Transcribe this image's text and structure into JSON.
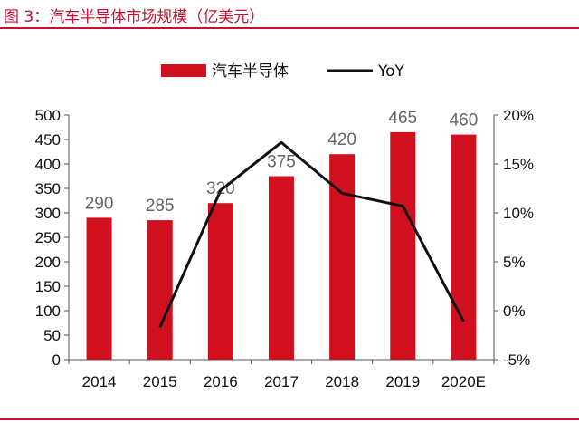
{
  "figure_title": "图 3：汽车半导体市场规模（亿美元）",
  "chart_data": {
    "type": "bar",
    "categories": [
      "2014",
      "2015",
      "2016",
      "2017",
      "2018",
      "2019",
      "2020E"
    ],
    "series": [
      {
        "name": "汽车半导体",
        "type": "bar",
        "axis": "left",
        "values": [
          290,
          285,
          320,
          375,
          420,
          465,
          460
        ],
        "color": "#d0101f"
      },
      {
        "name": "YoY",
        "type": "line",
        "axis": "right",
        "values": [
          null,
          -1.7,
          12.3,
          17.2,
          12.0,
          10.7,
          -1.1
        ],
        "color": "#111111"
      }
    ],
    "data_labels": [
      "290",
      "285",
      "320",
      "375",
      "420",
      "465",
      "460"
    ],
    "ylim": [
      0,
      500
    ],
    "yticks": [
      "0",
      "50",
      "100",
      "150",
      "200",
      "250",
      "300",
      "350",
      "400",
      "450",
      "500"
    ],
    "y2lim": [
      -5,
      20
    ],
    "y2ticks": [
      "-5%",
      "0%",
      "5%",
      "10%",
      "15%",
      "20%"
    ],
    "legend_position": "top-center",
    "grid": false
  }
}
